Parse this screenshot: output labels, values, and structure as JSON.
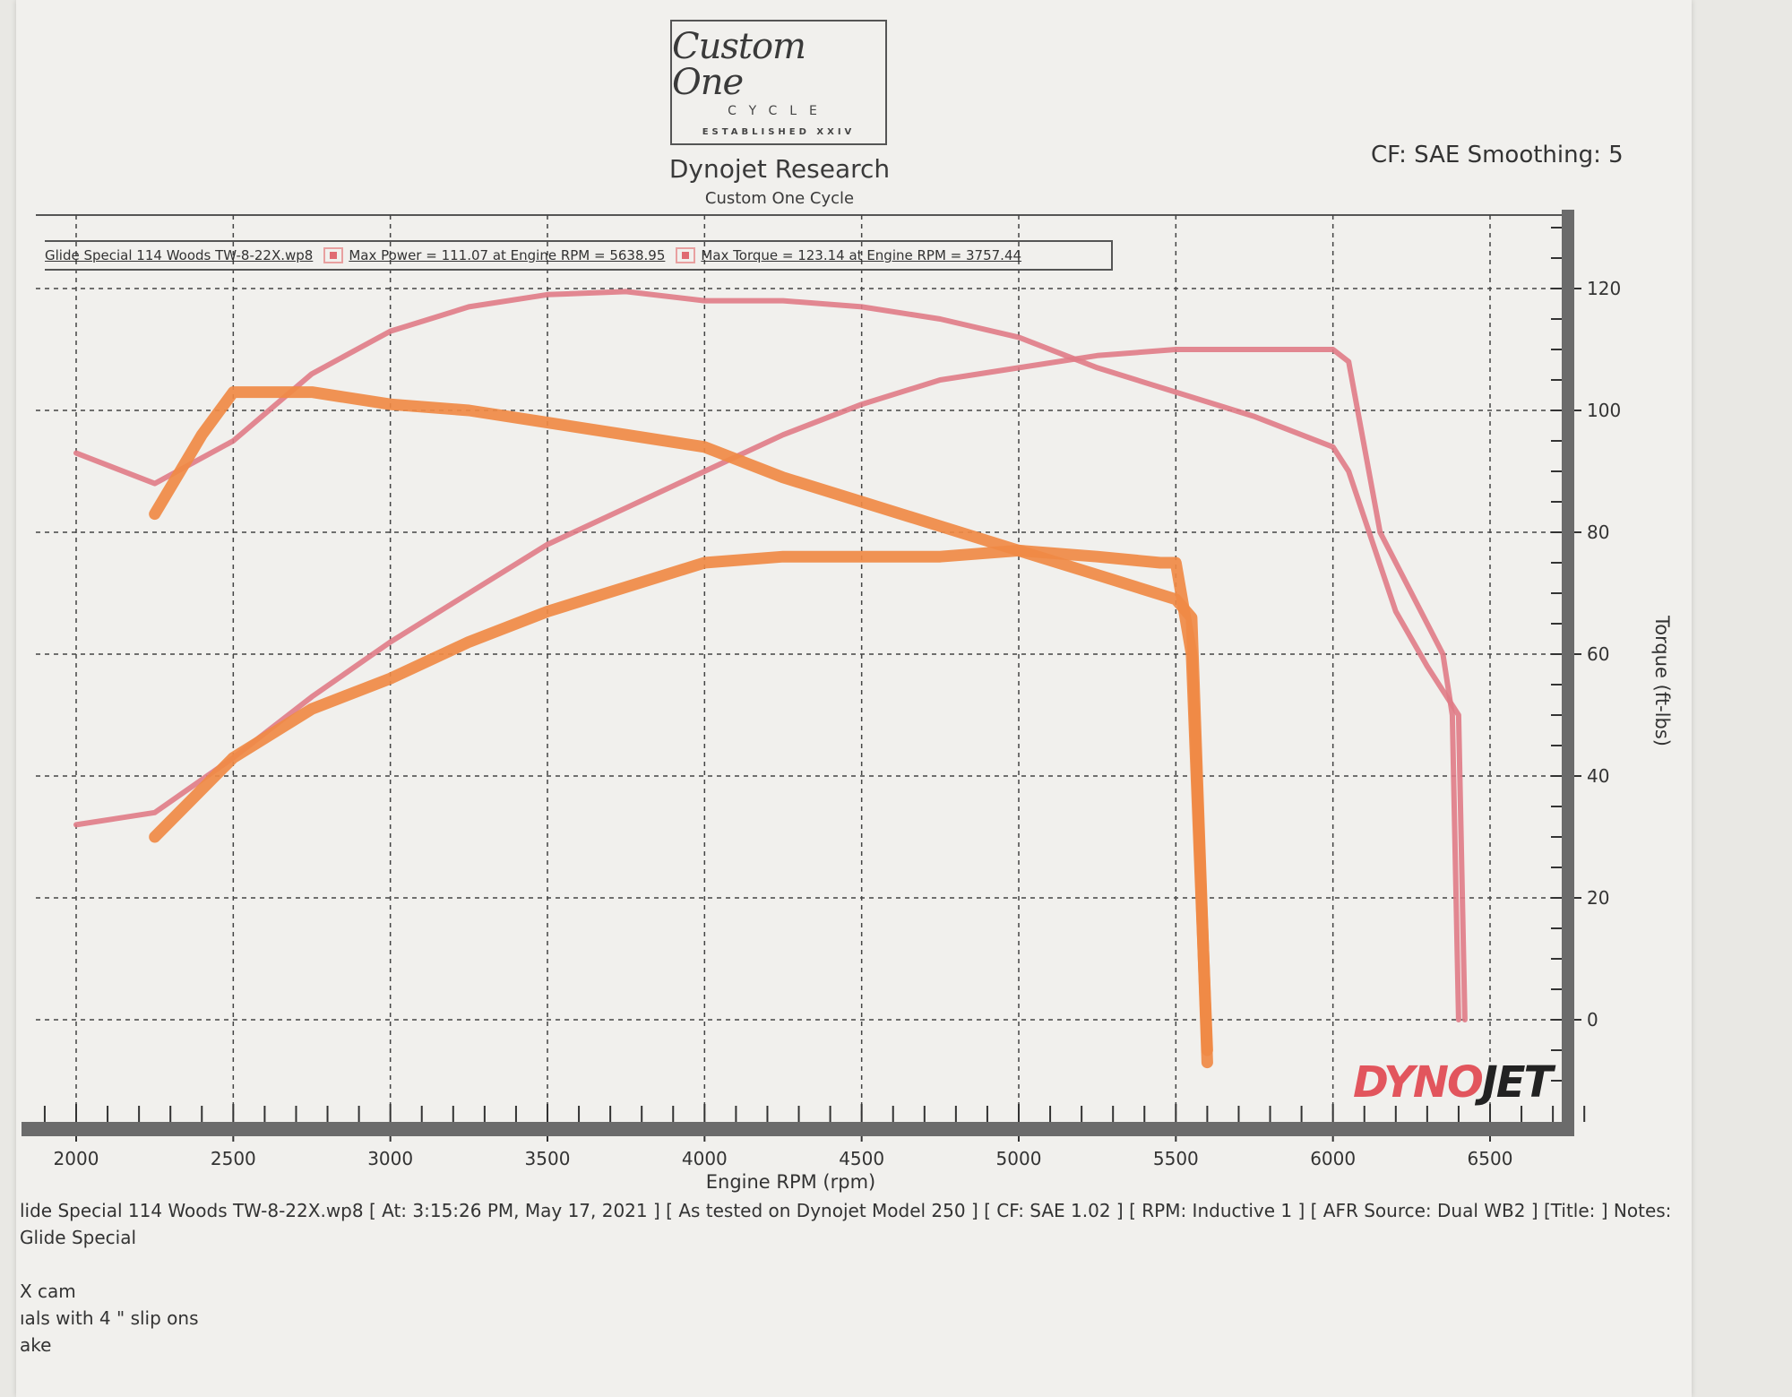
{
  "header": {
    "logo": {
      "script": "Custom One",
      "line2": "CYCLE",
      "line3": "ESTABLISHED XXIV"
    },
    "title": "Dynojet Research",
    "subtitle": "Custom One Cycle",
    "correction": "CF: SAE Smoothing: 5"
  },
  "legend": {
    "file": "Glide Special 114 Woods TW-8-22X.wp8",
    "max_power": "Max Power = 111.07 at Engine RPM = 5638.95",
    "max_torque": "Max Torque = 123.14 at Engine RPM = 3757.44"
  },
  "brand": {
    "dyno": "DYNO",
    "jet": "JET"
  },
  "footer": {
    "line1": "lide Special 114 Woods TW-8-22X.wp8 [ At: 3:15:26 PM, May 17, 2021 ] [ As tested on Dynojet Model 250 ] [ CF: SAE 1.02 ] [ RPM: Inductive 1 ] [ AFR Source: Dual WB2 ] [Title: ]  Notes:",
    "line2": " Glide Special",
    "line3": "",
    "line4": "X cam",
    "line5": "ıals with 4 \" slip ons",
    "line6": "ake"
  },
  "colors": {
    "printed_curve": "#e07b86",
    "marker_curve": "#f08a45",
    "grid": "#444444",
    "axis_bar": "#6b6b6b"
  },
  "chart_data": {
    "type": "line",
    "title": "Dynojet Research",
    "subtitle": "Custom One Cycle",
    "xlabel": "Engine RPM (rpm)",
    "ylabel": "Torque (ft-lbs)",
    "xlim": [
      1800,
      6850
    ],
    "ylim": [
      -12,
      132
    ],
    "x_ticks": [
      2000,
      2500,
      3000,
      3500,
      4000,
      4500,
      5000,
      5500,
      6000,
      6500
    ],
    "y_ticks": [
      0,
      20,
      40,
      60,
      80,
      100,
      120
    ],
    "grid": true,
    "legend_position": "top-left",
    "annotations": [
      "Max Power = 111.07 at Engine RPM = 5638.95",
      "Max Torque = 123.14 at Engine RPM = 3757.44",
      "CF: SAE Smoothing: 5"
    ],
    "series": [
      {
        "name": "Torque (printed run)",
        "style": "printed",
        "x": [
          2000,
          2250,
          2500,
          2750,
          3000,
          3250,
          3500,
          3750,
          4000,
          4250,
          4500,
          4750,
          5000,
          5250,
          5500,
          5750,
          6000,
          6050,
          6200,
          6300,
          6400,
          6420
        ],
        "y": [
          93,
          88,
          95,
          106,
          113,
          117,
          119,
          119.5,
          118,
          118,
          117,
          115,
          112,
          107,
          103,
          99,
          94,
          90,
          67,
          58,
          50,
          0
        ]
      },
      {
        "name": "Power (printed run)",
        "style": "printed",
        "x": [
          2000,
          2250,
          2500,
          2750,
          3000,
          3250,
          3500,
          3750,
          4000,
          4250,
          4500,
          4750,
          5000,
          5250,
          5500,
          5750,
          6000,
          6050,
          6150,
          6350,
          6380,
          6400
        ],
        "y": [
          32,
          34,
          43,
          53,
          62,
          70,
          78,
          84,
          90,
          96,
          101,
          105,
          107,
          109,
          110,
          110,
          110,
          108,
          80,
          60,
          50,
          0
        ]
      },
      {
        "name": "Torque (hand-drawn)",
        "style": "marker",
        "x": [
          2250,
          2400,
          2500,
          2750,
          3000,
          3250,
          3500,
          3750,
          4000,
          4250,
          4500,
          4750,
          5000,
          5250,
          5500,
          5550,
          5600
        ],
        "y": [
          83,
          96,
          103,
          103,
          101,
          100,
          98,
          96,
          94,
          89,
          85,
          81,
          77,
          73,
          69,
          66,
          -7
        ]
      },
      {
        "name": "Power (hand-drawn)",
        "style": "marker",
        "x": [
          2250,
          2500,
          2750,
          3000,
          3250,
          3500,
          3750,
          4000,
          4250,
          4500,
          4750,
          5000,
          5250,
          5450,
          5500,
          5550,
          5600
        ],
        "y": [
          30,
          43,
          51,
          56,
          62,
          67,
          71,
          75,
          76,
          76,
          76,
          77,
          76,
          75,
          75,
          60,
          -5
        ]
      }
    ]
  }
}
